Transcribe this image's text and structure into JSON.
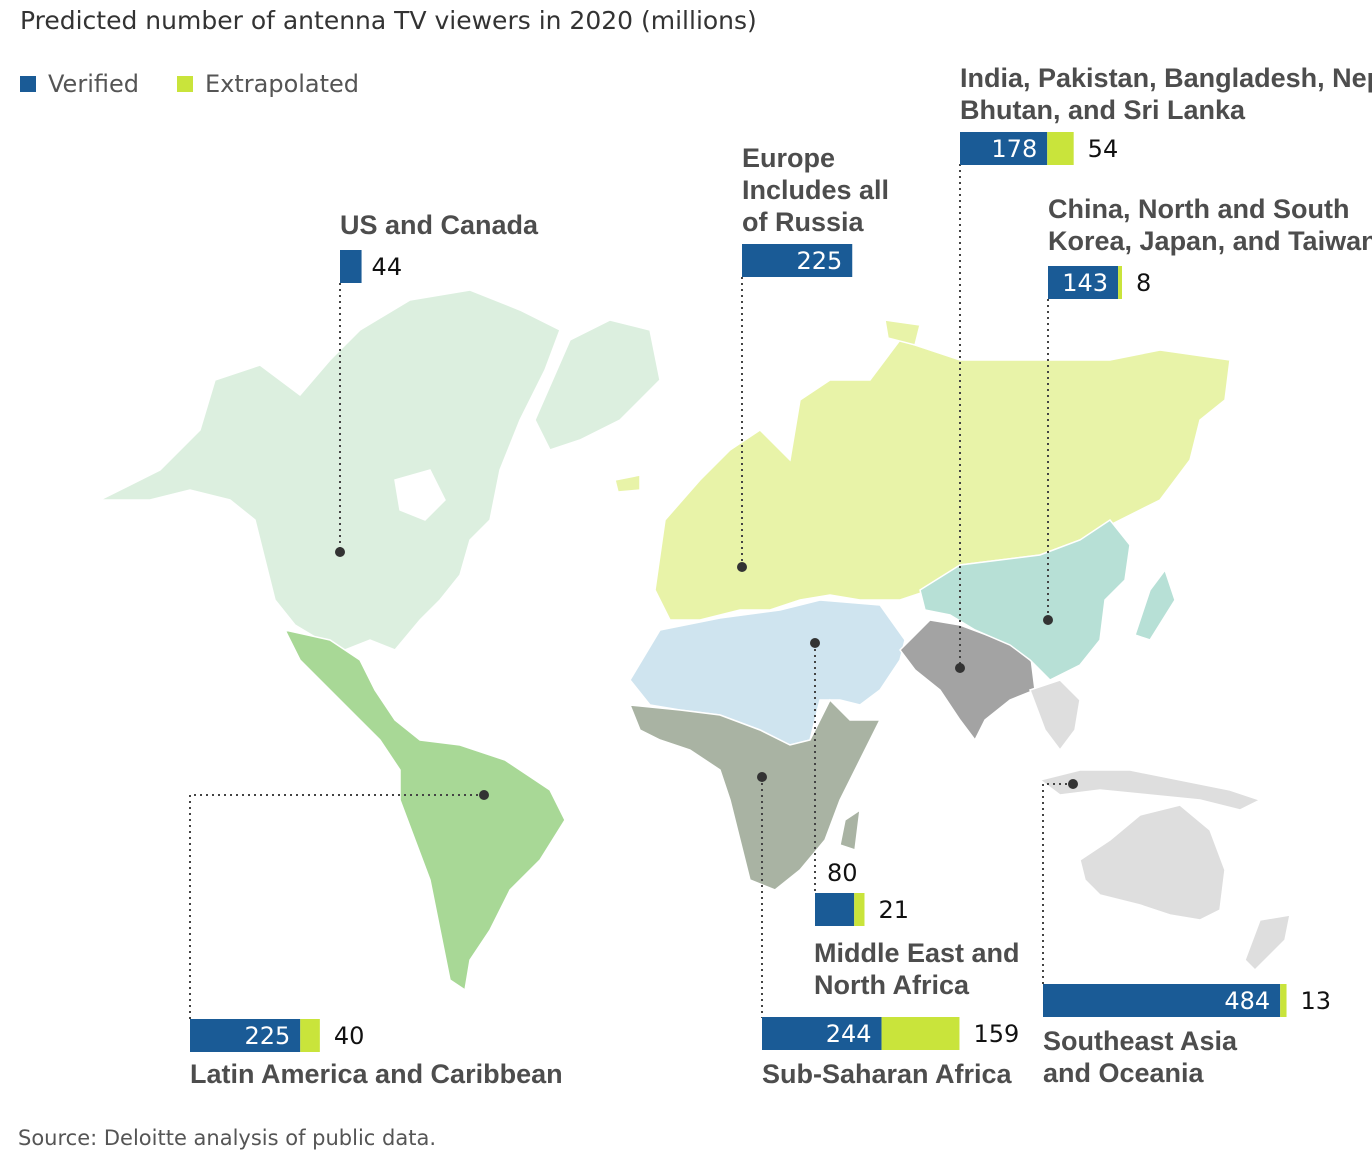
{
  "title": "Predicted number of antenna TV viewers in 2020 (millions)",
  "legend": [
    {
      "label": "Verified",
      "color": "#1a5b96"
    },
    {
      "label": "Extrapolated",
      "color": "#c9e43b"
    }
  ],
  "source": "Source: Deloitte analysis of public data.",
  "colors": {
    "verified": "#1a5b96",
    "extrapolated": "#c9e43b",
    "north_america": "#dcefdf",
    "latin_america": "#a8d896",
    "europe_russia": "#e8f3a8",
    "mena": "#cfe4ef",
    "sub_saharan": "#a9b3a3",
    "south_asia": "#a3a3a3",
    "east_asia": "#b7e0d6",
    "se_asia_oceania": "#dedede"
  },
  "chart_data": {
    "type": "bar",
    "title": "Predicted number of antenna TV viewers in 2020 (millions)",
    "series_names": [
      "Verified",
      "Extrapolated"
    ],
    "regions": [
      {
        "name": "US and Canada",
        "verified": 44,
        "extrapolated": 0
      },
      {
        "name": "Europe Includes all of Russia",
        "verified": 225,
        "extrapolated": 0
      },
      {
        "name": "India, Pakistan, Bangladesh, Nepal, Bhutan, and Sri Lanka",
        "verified": 178,
        "extrapolated": 54
      },
      {
        "name": "China, North and South Korea, Japan, and Taiwan",
        "verified": 143,
        "extrapolated": 8
      },
      {
        "name": "Latin America and Caribbean",
        "verified": 225,
        "extrapolated": 40
      },
      {
        "name": "Middle East and North Africa",
        "verified": 80,
        "extrapolated": 21
      },
      {
        "name": "Sub-Saharan Africa",
        "verified": 244,
        "extrapolated": 159
      },
      {
        "name": "Southeast Asia and Oceania",
        "verified": 484,
        "extrapolated": 13
      }
    ]
  },
  "labels": {
    "us_canada": [
      "US and Canada"
    ],
    "europe": [
      "Europe",
      "Includes all",
      "of Russia"
    ],
    "india": [
      "India, Pakistan, Bangladesh, Nepal,",
      "Bhutan, and Sri Lanka"
    ],
    "china": [
      "China, North and South",
      "Korea, Japan, and Taiwan"
    ],
    "latam": [
      "Latin America and Caribbean"
    ],
    "mena": [
      "Middle East and",
      "North Africa"
    ],
    "ssa": [
      "Sub-Saharan Africa"
    ],
    "sea": [
      "Southeast Asia",
      "and Oceania"
    ]
  }
}
